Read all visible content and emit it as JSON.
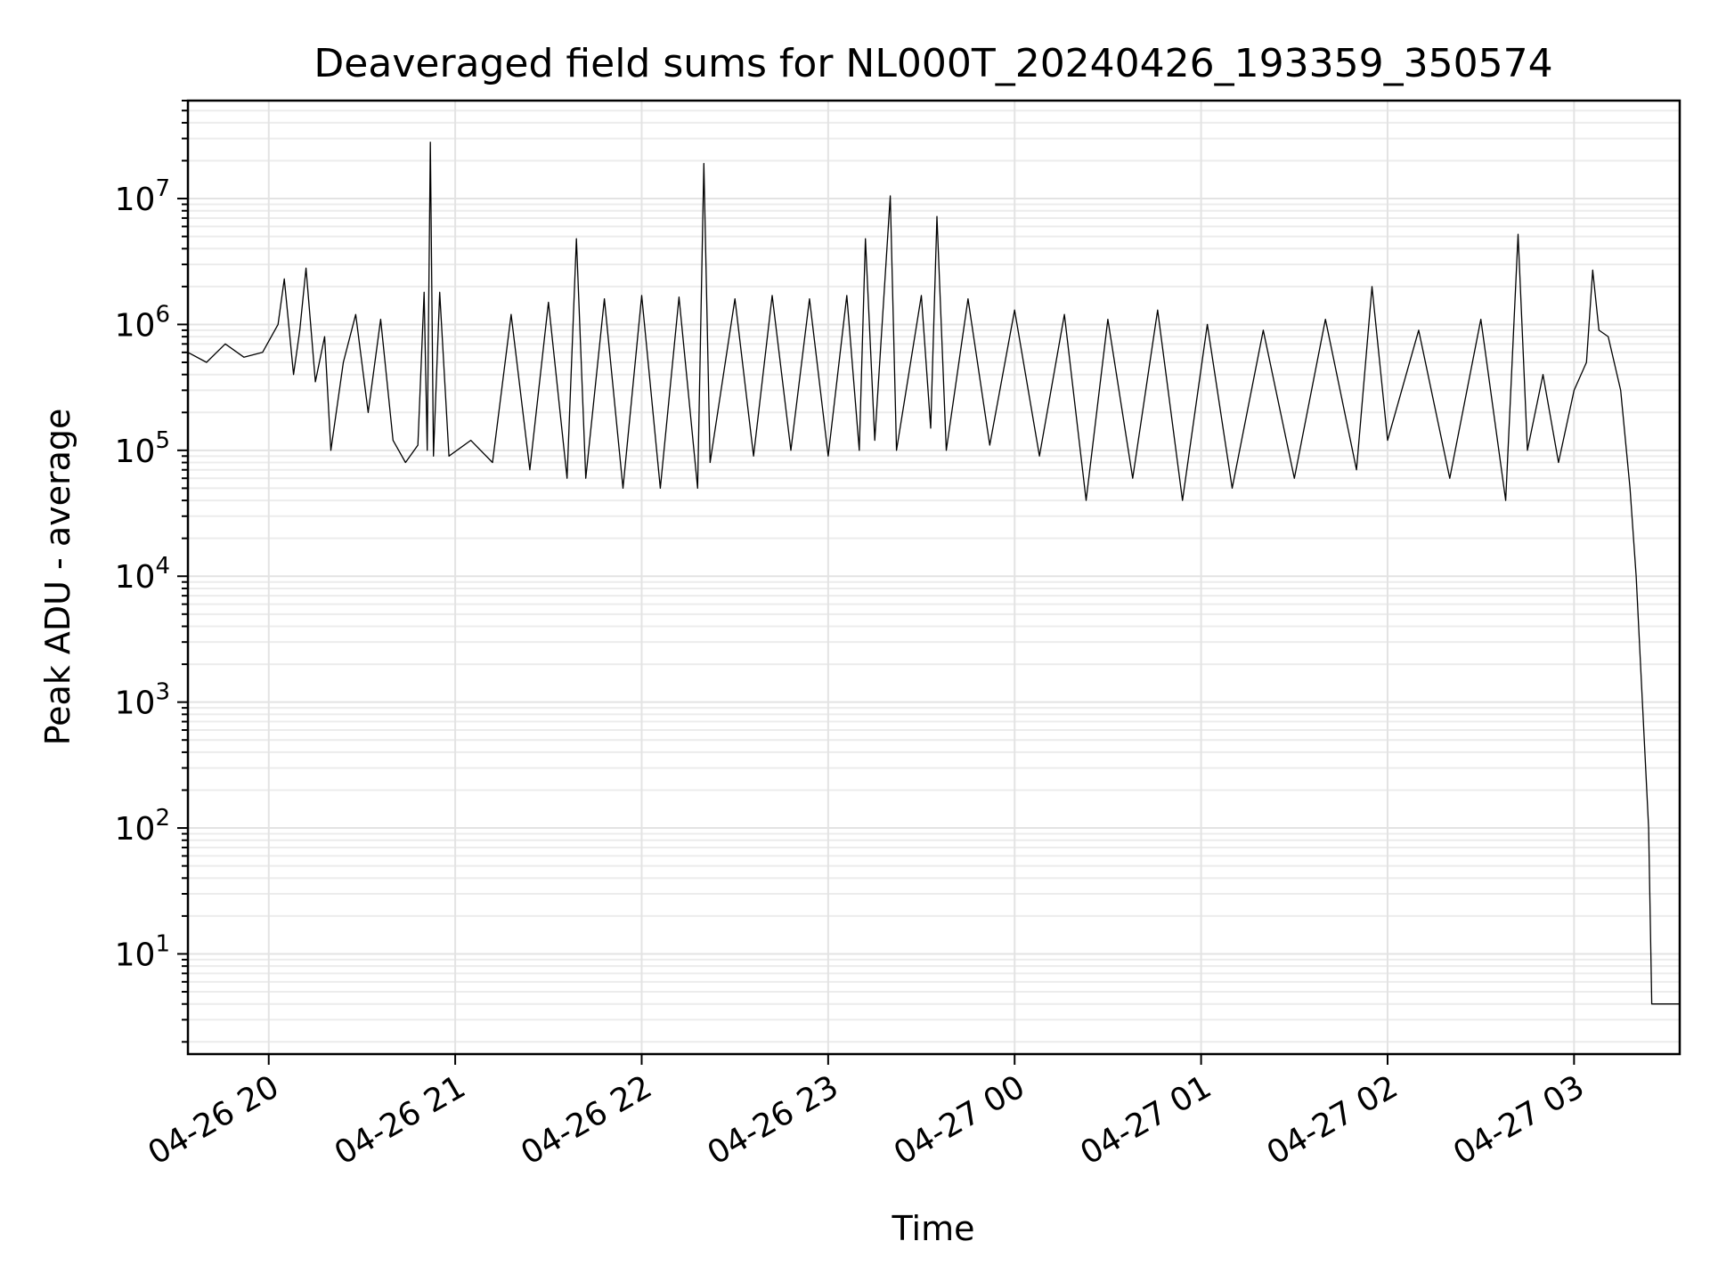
{
  "chart_data": {
    "type": "line",
    "title": "Deaveraged field sums for NL000T_20240426_193359_350574",
    "xlabel": "Time",
    "ylabel": "Peak ADU - average",
    "yscale": "log",
    "xlim": [
      "2024-04-26 19:34",
      "2024-04-27 03:34"
    ],
    "ylim": [
      1.6,
      60000000
    ],
    "grid": "major and minor",
    "x_ticks": [
      {
        "value": "2024-04-26 20:00",
        "label": "04-26 20"
      },
      {
        "value": "2024-04-26 21:00",
        "label": "04-26 21"
      },
      {
        "value": "2024-04-26 22:00",
        "label": "04-26 22"
      },
      {
        "value": "2024-04-26 23:00",
        "label": "04-26 23"
      },
      {
        "value": "2024-04-27 00:00",
        "label": "04-27 00"
      },
      {
        "value": "2024-04-27 01:00",
        "label": "04-27 01"
      },
      {
        "value": "2024-04-27 02:00",
        "label": "04-27 02"
      },
      {
        "value": "2024-04-27 03:00",
        "label": "04-27 03"
      }
    ],
    "y_ticks": [
      {
        "value": 10,
        "base": "10",
        "exp": "1"
      },
      {
        "value": 100,
        "base": "10",
        "exp": "2"
      },
      {
        "value": 1000,
        "base": "10",
        "exp": "3"
      },
      {
        "value": 10000,
        "base": "10",
        "exp": "4"
      },
      {
        "value": 100000,
        "base": "10",
        "exp": "5"
      },
      {
        "value": 1000000,
        "base": "10",
        "exp": "6"
      },
      {
        "value": 10000000,
        "base": "10",
        "exp": "7"
      }
    ],
    "series": [
      {
        "color": "#000000",
        "points": [
          [
            "2024-04-26 19:34",
            600000
          ],
          [
            "2024-04-26 19:40",
            500000
          ],
          [
            "2024-04-26 19:46",
            700000
          ],
          [
            "2024-04-26 19:52",
            550000
          ],
          [
            "2024-04-26 19:58",
            600000
          ],
          [
            "2024-04-26 20:03",
            1000000
          ],
          [
            "2024-04-26 20:05",
            2300000
          ],
          [
            "2024-04-26 20:08",
            400000
          ],
          [
            "2024-04-26 20:10",
            900000
          ],
          [
            "2024-04-26 20:12",
            2800000
          ],
          [
            "2024-04-26 20:15",
            350000
          ],
          [
            "2024-04-26 20:18",
            800000
          ],
          [
            "2024-04-26 20:20",
            100000
          ],
          [
            "2024-04-26 20:24",
            500000
          ],
          [
            "2024-04-26 20:28",
            1200000
          ],
          [
            "2024-04-26 20:32",
            200000
          ],
          [
            "2024-04-26 20:36",
            1100000
          ],
          [
            "2024-04-26 20:40",
            120000
          ],
          [
            "2024-04-26 20:44",
            80000
          ],
          [
            "2024-04-26 20:48",
            110000
          ],
          [
            "2024-04-26 20:50",
            1800000
          ],
          [
            "2024-04-26 20:51",
            100000
          ],
          [
            "2024-04-26 20:52",
            28000000
          ],
          [
            "2024-04-26 20:53",
            90000
          ],
          [
            "2024-04-26 20:55",
            1800000
          ],
          [
            "2024-04-26 20:58",
            90000
          ],
          [
            "2024-04-26 21:05",
            120000
          ],
          [
            "2024-04-26 21:12",
            80000
          ],
          [
            "2024-04-26 21:18",
            1200000
          ],
          [
            "2024-04-26 21:24",
            70000
          ],
          [
            "2024-04-26 21:30",
            1500000
          ],
          [
            "2024-04-26 21:36",
            60000
          ],
          [
            "2024-04-26 21:39",
            4800000
          ],
          [
            "2024-04-26 21:42",
            60000
          ],
          [
            "2024-04-26 21:48",
            1600000
          ],
          [
            "2024-04-26 21:54",
            50000
          ],
          [
            "2024-04-26 22:00",
            1700000
          ],
          [
            "2024-04-26 22:06",
            50000
          ],
          [
            "2024-04-26 22:12",
            1650000
          ],
          [
            "2024-04-26 22:18",
            50000
          ],
          [
            "2024-04-26 22:20",
            19000000
          ],
          [
            "2024-04-26 22:22",
            80000
          ],
          [
            "2024-04-26 22:30",
            1600000
          ],
          [
            "2024-04-26 22:36",
            90000
          ],
          [
            "2024-04-26 22:42",
            1700000
          ],
          [
            "2024-04-26 22:48",
            100000
          ],
          [
            "2024-04-26 22:54",
            1600000
          ],
          [
            "2024-04-26 23:00",
            90000
          ],
          [
            "2024-04-26 23:06",
            1700000
          ],
          [
            "2024-04-26 23:10",
            100000
          ],
          [
            "2024-04-26 23:12",
            4800000
          ],
          [
            "2024-04-26 23:15",
            120000
          ],
          [
            "2024-04-26 23:20",
            10500000
          ],
          [
            "2024-04-26 23:22",
            100000
          ],
          [
            "2024-04-26 23:30",
            1700000
          ],
          [
            "2024-04-26 23:33",
            150000
          ],
          [
            "2024-04-26 23:35",
            7200000
          ],
          [
            "2024-04-26 23:38",
            100000
          ],
          [
            "2024-04-26 23:45",
            1600000
          ],
          [
            "2024-04-26 23:52",
            110000
          ],
          [
            "2024-04-27 00:00",
            1300000
          ],
          [
            "2024-04-27 00:08",
            90000
          ],
          [
            "2024-04-27 00:16",
            1200000
          ],
          [
            "2024-04-27 00:23",
            40000
          ],
          [
            "2024-04-27 00:30",
            1100000
          ],
          [
            "2024-04-27 00:38",
            60000
          ],
          [
            "2024-04-27 00:46",
            1300000
          ],
          [
            "2024-04-27 00:54",
            40000
          ],
          [
            "2024-04-27 01:02",
            1000000
          ],
          [
            "2024-04-27 01:10",
            50000
          ],
          [
            "2024-04-27 01:20",
            900000
          ],
          [
            "2024-04-27 01:30",
            60000
          ],
          [
            "2024-04-27 01:40",
            1100000
          ],
          [
            "2024-04-27 01:50",
            70000
          ],
          [
            "2024-04-27 01:55",
            2000000
          ],
          [
            "2024-04-27 02:00",
            120000
          ],
          [
            "2024-04-27 02:10",
            900000
          ],
          [
            "2024-04-27 02:20",
            60000
          ],
          [
            "2024-04-27 02:30",
            1100000
          ],
          [
            "2024-04-27 02:38",
            40000
          ],
          [
            "2024-04-27 02:42",
            5200000
          ],
          [
            "2024-04-27 02:45",
            100000
          ],
          [
            "2024-04-27 02:50",
            400000
          ],
          [
            "2024-04-27 02:55",
            80000
          ],
          [
            "2024-04-27 03:00",
            300000
          ],
          [
            "2024-04-27 03:04",
            500000
          ],
          [
            "2024-04-27 03:06",
            2700000
          ],
          [
            "2024-04-27 03:08",
            900000
          ],
          [
            "2024-04-27 03:11",
            800000
          ],
          [
            "2024-04-27 03:15",
            300000
          ],
          [
            "2024-04-27 03:18",
            50000
          ],
          [
            "2024-04-27 03:20",
            10000
          ],
          [
            "2024-04-27 03:22",
            1000
          ],
          [
            "2024-04-27 03:24",
            100
          ],
          [
            "2024-04-27 03:25",
            4
          ],
          [
            "2024-04-27 03:34",
            4
          ]
        ]
      }
    ]
  }
}
